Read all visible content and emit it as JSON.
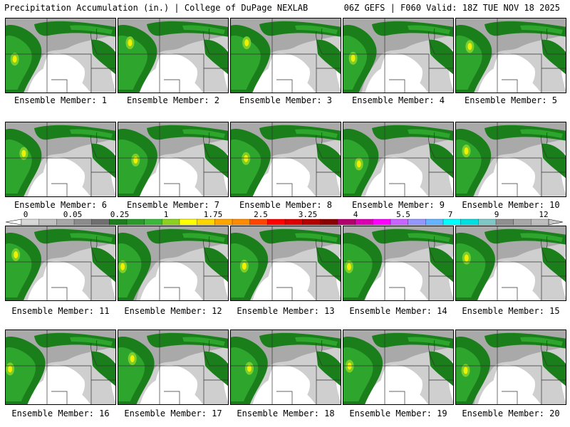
{
  "header": {
    "title_left": "Precipitation Accumulation (in.) | College of DuPage NEXLAB",
    "title_right": "06Z GEFS | F060 Valid: 18Z TUE NOV 18 2025"
  },
  "members": [
    {
      "label": "Ensemble Member: 1"
    },
    {
      "label": "Ensemble Member: 2"
    },
    {
      "label": "Ensemble Member: 3"
    },
    {
      "label": "Ensemble Member: 4"
    },
    {
      "label": "Ensemble Member: 5"
    },
    {
      "label": "Ensemble Member: 6"
    },
    {
      "label": "Ensemble Member: 7"
    },
    {
      "label": "Ensemble Member: 8"
    },
    {
      "label": "Ensemble Member: 9"
    },
    {
      "label": "Ensemble Member: 10"
    },
    {
      "label": "Ensemble Member: 11"
    },
    {
      "label": "Ensemble Member: 12"
    },
    {
      "label": "Ensemble Member: 13"
    },
    {
      "label": "Ensemble Member: 14"
    },
    {
      "label": "Ensemble Member: 15"
    },
    {
      "label": "Ensemble Member: 16"
    },
    {
      "label": "Ensemble Member: 17"
    },
    {
      "label": "Ensemble Member: 18"
    },
    {
      "label": "Ensemble Member: 19"
    },
    {
      "label": "Ensemble Member: 20"
    }
  ],
  "colorbar": {
    "ticks": [
      "0",
      "0.05",
      "0.25",
      "1",
      "1.75",
      "2.5",
      "3.25",
      "4",
      "5.5",
      "7",
      "9",
      "12"
    ],
    "colors": [
      "#d8d8d8",
      "#c0c0c0",
      "#a8a8a8",
      "#8c8c8c",
      "#707070",
      "#1e7d1e",
      "#2a9a2a",
      "#3cb83c",
      "#8cd21e",
      "#ffff00",
      "#ffd700",
      "#ffa500",
      "#ff8c00",
      "#ff4500",
      "#ff0000",
      "#dc0000",
      "#b40000",
      "#8b0000",
      "#b4006e",
      "#dc00b4",
      "#ff00ff",
      "#c864ff",
      "#9696ff",
      "#64b4ff",
      "#00ffff",
      "#00e0e0",
      "#80c8c8",
      "#909090",
      "#a8a8a8",
      "#bebebe"
    ]
  },
  "precip_colors": {
    "light_gray": "#cfcfcf",
    "mid_gray": "#a9a9a9",
    "dark_gray": "#888888",
    "green_dark": "#1a7f1a",
    "green": "#2ea62e",
    "green_light": "#7ccf2a",
    "yellow": "#f0f000"
  }
}
